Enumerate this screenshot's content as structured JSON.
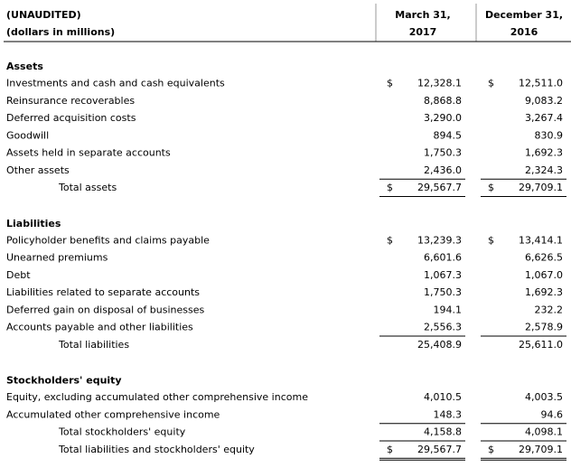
{
  "header": {
    "lines": [
      "(UNAUDITED)",
      "(dollars in millions)"
    ],
    "columns": [
      [
        "March 31,",
        "2017"
      ],
      [
        "December 31,",
        "2016"
      ]
    ]
  },
  "currency_symbol": "$",
  "sections": [
    {
      "title": "Assets",
      "rows": [
        {
          "label": "Investments and cash and cash equivalents",
          "values": [
            "12,328.1",
            "12,511.0"
          ],
          "currency": true
        },
        {
          "label": "Reinsurance recoverables",
          "values": [
            "8,868.8",
            "9,083.2"
          ]
        },
        {
          "label": "Deferred acquisition costs",
          "values": [
            "3,290.0",
            "3,267.4"
          ]
        },
        {
          "label": "Goodwill",
          "values": [
            "894.5",
            "830.9"
          ]
        },
        {
          "label": "Assets held in separate accounts",
          "values": [
            "1,750.3",
            "1,692.3"
          ]
        },
        {
          "label": "Other assets",
          "values": [
            "2,436.0",
            "2,324.3"
          ],
          "rule_below": "single"
        },
        {
          "label": "Total assets",
          "values": [
            "29,567.7",
            "29,709.1"
          ],
          "currency": true,
          "total": true,
          "rule_below": "single"
        }
      ]
    },
    {
      "title": "Liabilities",
      "rows": [
        {
          "label": "Policyholder benefits and claims payable",
          "values": [
            "13,239.3",
            "13,414.1"
          ],
          "currency": true
        },
        {
          "label": "Unearned premiums",
          "values": [
            "6,601.6",
            "6,626.5"
          ]
        },
        {
          "label": "Debt",
          "values": [
            "1,067.3",
            "1,067.0"
          ]
        },
        {
          "label": "Liabilities related to separate accounts",
          "values": [
            "1,750.3",
            "1,692.3"
          ]
        },
        {
          "label": "Deferred gain on disposal of businesses",
          "values": [
            "194.1",
            "232.2"
          ]
        },
        {
          "label": "Accounts payable and other liabilities",
          "values": [
            "2,556.3",
            "2,578.9"
          ],
          "rule_below": "single"
        },
        {
          "label": "Total liabilities",
          "values": [
            "25,408.9",
            "25,611.0"
          ],
          "total": true
        }
      ]
    },
    {
      "title": "Stockholders' equity",
      "rows": [
        {
          "label": "Equity, excluding accumulated other comprehensive income",
          "values": [
            "4,010.5",
            "4,003.5"
          ]
        },
        {
          "label": "Accumulated other comprehensive income",
          "values": [
            "148.3",
            "94.6"
          ],
          "rule_below": "single"
        },
        {
          "label": "Total stockholders' equity",
          "values": [
            "4,158.8",
            "4,098.1"
          ],
          "total": true,
          "rule_below": "single"
        },
        {
          "label": "Total liabilities and stockholders' equity",
          "values": [
            "29,567.7",
            "29,709.1"
          ],
          "currency": true,
          "total": true,
          "rule_below": "double"
        }
      ]
    }
  ]
}
